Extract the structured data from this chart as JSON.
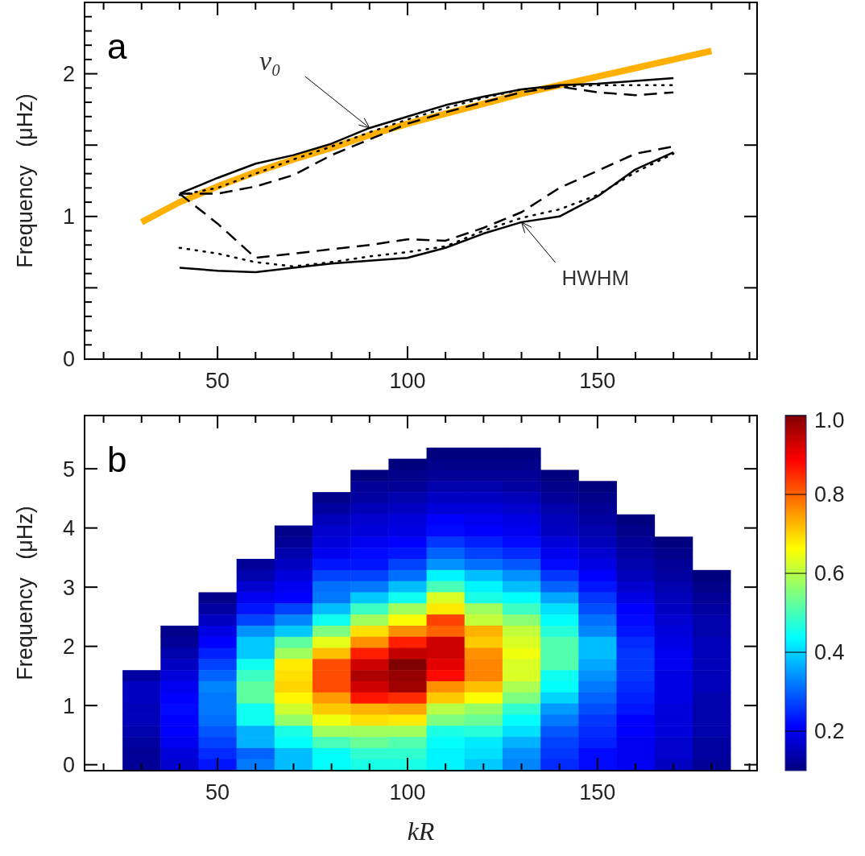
{
  "chart_data": [
    {
      "type": "line",
      "title": "a",
      "ylabel": "Frequency   (μHz)",
      "x": [
        40,
        50,
        60,
        70,
        80,
        90,
        100,
        110,
        120,
        130,
        140,
        150,
        160,
        170
      ],
      "xlim": [
        15,
        192
      ],
      "xticks": [
        {
          "value": 20,
          "label": null
        },
        {
          "value": 30,
          "label": null
        },
        {
          "value": 40,
          "label": null
        },
        50,
        {
          "value": 60,
          "label": null
        },
        {
          "value": 70,
          "label": null
        },
        {
          "value": 80,
          "label": null
        },
        {
          "value": 90,
          "label": null
        },
        100,
        {
          "value": 110,
          "label": null
        },
        {
          "value": 120,
          "label": null
        },
        {
          "value": 130,
          "label": null
        },
        {
          "value": 140,
          "label": null
        },
        150,
        {
          "value": 160,
          "label": null
        },
        {
          "value": 170,
          "label": null
        },
        {
          "value": 180,
          "label": null
        },
        {
          "value": 190,
          "label": null
        }
      ],
      "ylim": [
        0,
        2.5
      ],
      "yticks": [
        0,
        {
          "value": 0.1,
          "label": null
        },
        {
          "value": 0.2,
          "label": null
        },
        {
          "value": 0.3,
          "label": null
        },
        {
          "value": 0.4,
          "label": null
        },
        {
          "value": 0.5,
          "label": null
        },
        {
          "value": 0.6,
          "label": null
        },
        {
          "value": 0.7,
          "label": null
        },
        {
          "value": 0.8,
          "label": null
        },
        {
          "value": 0.9,
          "label": null
        },
        1,
        {
          "value": 1.1,
          "label": null
        },
        {
          "value": 1.2,
          "label": null
        },
        {
          "value": 1.3,
          "label": null
        },
        {
          "value": 1.4,
          "label": null
        },
        {
          "value": 1.5,
          "label": null
        },
        {
          "value": 1.6,
          "label": null
        },
        {
          "value": 1.7,
          "label": null
        },
        {
          "value": 1.8,
          "label": null
        },
        {
          "value": 1.9,
          "label": null
        },
        2,
        {
          "value": 2.1,
          "label": null
        },
        {
          "value": 2.2,
          "label": null
        },
        {
          "value": 2.3,
          "label": null
        },
        {
          "value": 2.4,
          "label": null
        },
        {
          "value": 2.5,
          "label": null
        }
      ],
      "series": [
        {
          "color": "#ffb000",
          "x": [
            30,
            40,
            50,
            60,
            70,
            80,
            90,
            100,
            110,
            120,
            130,
            140,
            150,
            160,
            170,
            180
          ],
          "values": [
            0.96,
            1.1,
            1.21,
            1.31,
            1.4,
            1.48,
            1.57,
            1.65,
            1.72,
            1.79,
            1.86,
            1.92,
            1.98,
            2.04,
            2.1,
            2.16
          ],
          "line_style": "solid"
        },
        {
          "color": "#000000",
          "values": [
            1.16,
            1.27,
            1.37,
            1.43,
            1.51,
            1.62,
            1.7,
            1.78,
            1.84,
            1.89,
            1.92,
            1.93,
            1.95,
            1.97
          ],
          "line_style": "solid"
        },
        {
          "color": "#000000",
          "values": [
            1.15,
            1.2,
            1.3,
            1.4,
            1.49,
            1.59,
            1.68,
            1.76,
            1.83,
            1.89,
            1.91,
            1.92,
            1.92,
            1.92
          ],
          "line_style": "dotted"
        },
        {
          "color": "#000000",
          "values": [
            1.16,
            1.16,
            1.21,
            1.29,
            1.43,
            1.54,
            1.65,
            1.73,
            1.8,
            1.87,
            1.91,
            1.87,
            1.85,
            1.87
          ],
          "line_style": "dashed"
        },
        {
          "color": "#000000",
          "values": [
            0.64,
            0.62,
            0.61,
            0.64,
            0.67,
            0.69,
            0.71,
            0.78,
            0.88,
            0.96,
            1.0,
            1.14,
            1.33,
            1.45
          ],
          "line_style": "solid"
        },
        {
          "color": "#000000",
          "values": [
            0.78,
            0.74,
            0.68,
            0.65,
            0.68,
            0.72,
            0.75,
            0.79,
            0.9,
            0.99,
            1.05,
            1.15,
            1.31,
            1.44
          ],
          "line_style": "dotted"
        },
        {
          "color": "#000000",
          "values": [
            1.16,
            0.95,
            0.71,
            0.74,
            0.77,
            0.8,
            0.84,
            0.83,
            0.92,
            1.03,
            1.2,
            1.32,
            1.44,
            1.49
          ],
          "line_style": "dashed"
        }
      ],
      "annotations": [
        {
          "text": "ν₀",
          "x": 90,
          "y": 1.62
        },
        {
          "text": "HWHM",
          "x": 130,
          "y": 0.96
        }
      ]
    },
    {
      "type": "heatmap",
      "title": "b",
      "xlabel": "kR",
      "ylabel": "Frequency   (μHz)",
      "x": [
        30,
        40,
        50,
        60,
        70,
        80,
        90,
        100,
        110,
        120,
        130,
        140,
        150,
        160,
        170,
        180
      ],
      "y": [
        5.264,
        5.076,
        4.888,
        4.7,
        4.512,
        4.324,
        4.136,
        3.948,
        3.76,
        3.572,
        3.384,
        3.196,
        3.008,
        2.82,
        2.632,
        2.444,
        2.256,
        2.068,
        1.88,
        1.692,
        1.504,
        1.316,
        1.128,
        0.94,
        0.752,
        0.564,
        0.376,
        0.188,
        0
      ],
      "xlim": [
        15,
        192
      ],
      "xticks": [
        {
          "value": 20,
          "label": null
        },
        {
          "value": 30,
          "label": null
        },
        {
          "value": 40,
          "label": null
        },
        50,
        {
          "value": 60,
          "label": null
        },
        {
          "value": 70,
          "label": null
        },
        {
          "value": 80,
          "label": null
        },
        {
          "value": 90,
          "label": null
        },
        100,
        {
          "value": 110,
          "label": null
        },
        {
          "value": 120,
          "label": null
        },
        {
          "value": 130,
          "label": null
        },
        {
          "value": 140,
          "label": null
        },
        150,
        {
          "value": 160,
          "label": null
        },
        {
          "value": 170,
          "label": null
        },
        {
          "value": 180,
          "label": null
        },
        {
          "value": 190,
          "label": null
        }
      ],
      "ylim": [
        -0.1,
        5.9
      ],
      "yticks": [
        0,
        1,
        2,
        3,
        4,
        5
      ],
      "clim": [
        0.1,
        1.0
      ],
      "cticks": [
        0.2,
        0.4,
        0.6,
        0.8,
        {
          "value": 1.0,
          "label": "1.0"
        }
      ],
      "cells": [
        [
          null,
          null,
          null,
          null,
          null,
          null,
          null,
          null,
          0.1,
          0.1,
          0.1,
          null,
          null,
          null,
          null,
          null
        ],
        [
          null,
          null,
          null,
          null,
          null,
          null,
          null,
          0.1,
          0.11,
          0.11,
          0.11,
          null,
          null,
          null,
          null,
          null
        ],
        [
          null,
          null,
          null,
          null,
          null,
          null,
          0.1,
          0.11,
          0.12,
          0.12,
          0.12,
          0.1,
          null,
          null,
          null,
          null
        ],
        [
          null,
          null,
          null,
          null,
          null,
          null,
          0.12,
          0.12,
          0.14,
          0.14,
          0.13,
          0.11,
          0.1,
          null,
          null,
          null
        ],
        [
          null,
          null,
          null,
          null,
          null,
          0.11,
          0.13,
          0.14,
          0.16,
          0.16,
          0.15,
          0.12,
          0.11,
          null,
          null,
          null
        ],
        [
          null,
          null,
          null,
          null,
          null,
          0.13,
          0.15,
          0.16,
          0.18,
          0.18,
          0.17,
          0.14,
          0.12,
          null,
          null,
          null
        ],
        [
          null,
          null,
          null,
          null,
          null,
          0.15,
          0.17,
          0.18,
          0.21,
          0.2,
          0.19,
          0.15,
          0.13,
          0.1,
          null,
          null
        ],
        [
          null,
          null,
          null,
          null,
          0.11,
          0.17,
          0.18,
          0.19,
          0.22,
          0.21,
          0.2,
          0.16,
          0.14,
          0.11,
          null,
          null
        ],
        [
          null,
          null,
          null,
          null,
          0.12,
          0.18,
          0.2,
          0.21,
          0.26,
          0.24,
          0.22,
          0.18,
          0.15,
          0.12,
          0.1,
          null
        ],
        [
          null,
          null,
          null,
          null,
          0.14,
          0.2,
          0.22,
          0.23,
          0.3,
          0.27,
          0.25,
          0.2,
          0.17,
          0.13,
          0.11,
          null
        ],
        [
          null,
          null,
          null,
          0.12,
          0.16,
          0.23,
          0.23,
          0.27,
          0.34,
          0.31,
          0.29,
          0.22,
          0.19,
          0.14,
          0.12,
          null
        ],
        [
          null,
          null,
          null,
          0.14,
          0.18,
          0.27,
          0.27,
          0.31,
          0.43,
          0.38,
          0.34,
          0.26,
          0.21,
          0.15,
          0.13,
          0.1
        ],
        [
          null,
          null,
          null,
          0.17,
          0.2,
          0.31,
          0.32,
          0.38,
          0.5,
          0.43,
          0.38,
          0.3,
          0.23,
          0.17,
          0.14,
          0.11
        ],
        [
          null,
          null,
          0.11,
          0.2,
          0.21,
          0.32,
          0.39,
          0.45,
          0.63,
          0.46,
          0.44,
          0.36,
          0.26,
          0.19,
          0.15,
          0.12
        ],
        [
          null,
          null,
          0.13,
          0.23,
          0.27,
          0.38,
          0.49,
          0.58,
          0.68,
          0.58,
          0.49,
          0.41,
          0.28,
          0.21,
          0.16,
          0.13
        ],
        [
          null,
          null,
          0.16,
          0.27,
          0.33,
          0.45,
          0.58,
          0.66,
          0.83,
          0.61,
          0.56,
          0.44,
          0.31,
          0.22,
          0.17,
          0.14
        ],
        [
          null,
          0.11,
          0.19,
          0.34,
          0.39,
          0.55,
          0.69,
          0.76,
          0.8,
          0.73,
          0.61,
          0.47,
          0.33,
          0.23,
          0.18,
          0.14
        ],
        [
          null,
          0.12,
          0.21,
          0.39,
          0.52,
          0.64,
          0.76,
          0.86,
          0.93,
          0.71,
          0.63,
          0.51,
          0.38,
          0.25,
          0.19,
          0.15
        ],
        [
          null,
          0.14,
          0.24,
          0.39,
          0.58,
          0.72,
          0.86,
          0.94,
          0.93,
          0.76,
          0.65,
          0.51,
          0.38,
          0.26,
          0.2,
          0.15
        ],
        [
          null,
          0.16,
          0.27,
          0.45,
          0.68,
          0.82,
          0.93,
          1.0,
          0.91,
          0.77,
          0.63,
          0.51,
          0.36,
          0.26,
          0.2,
          0.15
        ],
        [
          0.13,
          0.18,
          0.3,
          0.49,
          0.69,
          0.82,
          0.96,
          0.98,
          0.88,
          0.77,
          0.63,
          0.45,
          0.34,
          0.26,
          0.19,
          0.15
        ],
        [
          0.16,
          0.2,
          0.33,
          0.52,
          0.7,
          0.82,
          0.93,
          0.97,
          0.76,
          0.72,
          0.59,
          0.44,
          0.32,
          0.25,
          0.19,
          0.15
        ],
        [
          0.16,
          0.21,
          0.32,
          0.52,
          0.67,
          0.75,
          0.87,
          0.85,
          0.71,
          0.66,
          0.55,
          0.4,
          0.3,
          0.24,
          0.19,
          0.14
        ],
        [
          0.15,
          0.22,
          0.32,
          0.45,
          0.62,
          0.71,
          0.73,
          0.74,
          0.6,
          0.57,
          0.48,
          0.35,
          0.28,
          0.23,
          0.18,
          0.14
        ],
        [
          0.15,
          0.21,
          0.31,
          0.45,
          0.57,
          0.65,
          0.69,
          0.68,
          0.55,
          0.53,
          0.44,
          0.32,
          0.26,
          0.21,
          0.18,
          0.14
        ],
        [
          0.14,
          0.21,
          0.29,
          0.37,
          0.46,
          0.58,
          0.58,
          0.58,
          0.46,
          0.47,
          0.41,
          0.29,
          0.25,
          0.21,
          0.18,
          0.14
        ],
        [
          0.13,
          0.2,
          0.27,
          0.37,
          0.44,
          0.5,
          0.53,
          0.51,
          0.44,
          0.42,
          0.37,
          0.27,
          0.24,
          0.2,
          0.17,
          0.13
        ],
        [
          0.12,
          0.18,
          0.25,
          0.3,
          0.38,
          0.44,
          0.48,
          0.48,
          0.43,
          0.41,
          0.34,
          0.26,
          0.22,
          0.2,
          0.17,
          0.13
        ],
        [
          0.12,
          0.17,
          0.23,
          0.32,
          0.38,
          0.44,
          0.46,
          0.46,
          0.43,
          0.39,
          0.33,
          0.25,
          0.22,
          0.2,
          0.16,
          0.12
        ]
      ]
    }
  ]
}
